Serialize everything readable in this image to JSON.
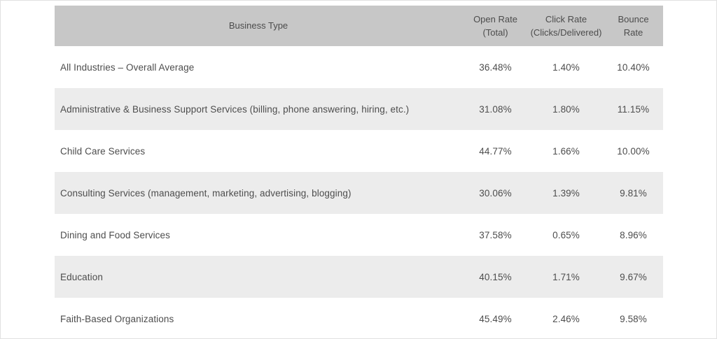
{
  "colors": {
    "header_bg": "#c7c7c7",
    "stripe_bg": "#ececec",
    "text": "#4d4d4d",
    "outer_border": "#e1e1e1"
  },
  "table": {
    "header": {
      "business_type": "Business Type",
      "open_rate": "Open Rate\n(Total)",
      "click_rate": "Click Rate\n(Clicks/Delivered)",
      "bounce_rate": "Bounce\nRate"
    },
    "rows": [
      {
        "business_type": "All Industries – Overall Average",
        "open_rate": "36.48%",
        "click_rate": "1.40%",
        "bounce_rate": "10.40%"
      },
      {
        "business_type": "Administrative & Business Support Services (billing, phone answering, hiring, etc.)",
        "open_rate": "31.08%",
        "click_rate": "1.80%",
        "bounce_rate": "11.15%"
      },
      {
        "business_type": "Child Care Services",
        "open_rate": "44.77%",
        "click_rate": "1.66%",
        "bounce_rate": "10.00%"
      },
      {
        "business_type": "Consulting Services (management, marketing, advertising, blogging)",
        "open_rate": "30.06%",
        "click_rate": "1.39%",
        "bounce_rate": "9.81%"
      },
      {
        "business_type": "Dining and Food Services",
        "open_rate": "37.58%",
        "click_rate": "0.65%",
        "bounce_rate": "8.96%"
      },
      {
        "business_type": "Education",
        "open_rate": "40.15%",
        "click_rate": "1.71%",
        "bounce_rate": "9.67%"
      },
      {
        "business_type": "Faith-Based Organizations",
        "open_rate": "45.49%",
        "click_rate": "2.46%",
        "bounce_rate": "9.58%"
      }
    ]
  },
  "chart_data": {
    "type": "table",
    "columns": [
      "Business Type",
      "Open Rate (Total)",
      "Click Rate (Clicks/Delivered)",
      "Bounce Rate"
    ],
    "rows": [
      [
        "All Industries – Overall Average",
        "36.48%",
        "1.40%",
        "10.40%"
      ],
      [
        "Administrative & Business Support Services (billing, phone answering, hiring, etc.)",
        "31.08%",
        "1.80%",
        "11.15%"
      ],
      [
        "Child Care Services",
        "44.77%",
        "1.66%",
        "10.00%"
      ],
      [
        "Consulting Services (management, marketing, advertising, blogging)",
        "30.06%",
        "1.39%",
        "9.81%"
      ],
      [
        "Dining and Food Services",
        "37.58%",
        "0.65%",
        "8.96%"
      ],
      [
        "Education",
        "40.15%",
        "1.71%",
        "9.67%"
      ],
      [
        "Faith-Based Organizations",
        "45.49%",
        "2.46%",
        "9.58%"
      ]
    ],
    "layout": {
      "striped": true,
      "stripe_rows": "even (2nd, 4th, 6th data rows)",
      "header_alignment": "center",
      "value_alignment": "center",
      "business_type_alignment": "left"
    }
  }
}
